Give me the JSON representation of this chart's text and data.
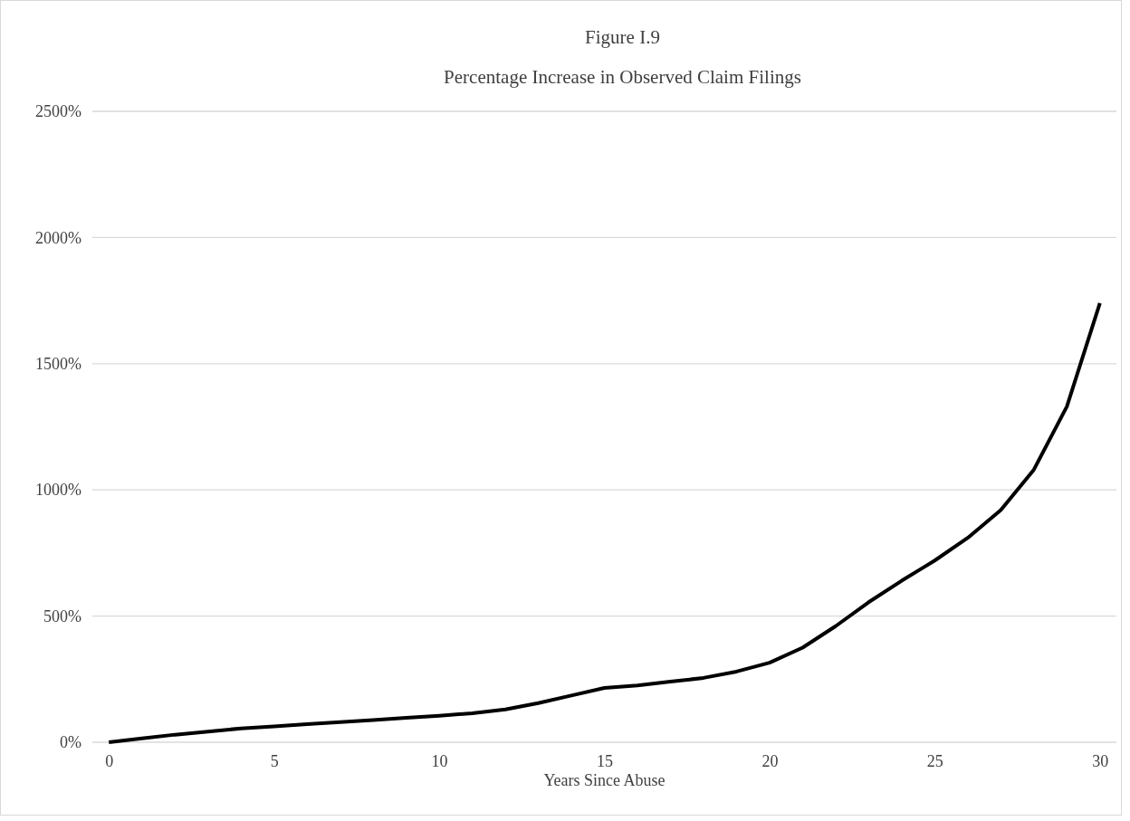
{
  "chart_data": {
    "type": "line",
    "title": "Figure I.9",
    "subtitle": "Percentage Increase in Observed Claim Filings",
    "xlabel": "Years Since Abuse",
    "x": [
      0,
      1,
      2,
      3,
      4,
      5,
      6,
      7,
      8,
      9,
      10,
      11,
      12,
      13,
      14,
      15,
      16,
      17,
      18,
      19,
      20,
      21,
      22,
      23,
      24,
      25,
      26,
      27,
      28,
      29,
      30
    ],
    "series": [
      {
        "color": "#000000",
        "values": [
          0,
          15,
          30,
          42,
          55,
          63,
          72,
          80,
          88,
          97,
          105,
          115,
          130,
          155,
          185,
          215,
          225,
          240,
          255,
          280,
          315,
          375,
          460,
          555,
          640,
          720,
          810,
          920,
          1080,
          1330,
          1740
        ]
      }
    ],
    "xlim": [
      -0.5,
      30.5
    ],
    "xticks": [
      0,
      5,
      10,
      15,
      20,
      25,
      30
    ],
    "ylim": [
      0,
      2500
    ],
    "yticks": [
      {
        "value": 0,
        "label": "0%"
      },
      {
        "value": 500,
        "label": "500%"
      },
      {
        "value": 1000,
        "label": "1000%"
      },
      {
        "value": 1500,
        "label": "1500%"
      },
      {
        "value": 2000,
        "label": "2000%"
      },
      {
        "value": 2500,
        "label": "2500%"
      }
    ],
    "grid": "y",
    "marker": "none",
    "line_style": "solid"
  }
}
